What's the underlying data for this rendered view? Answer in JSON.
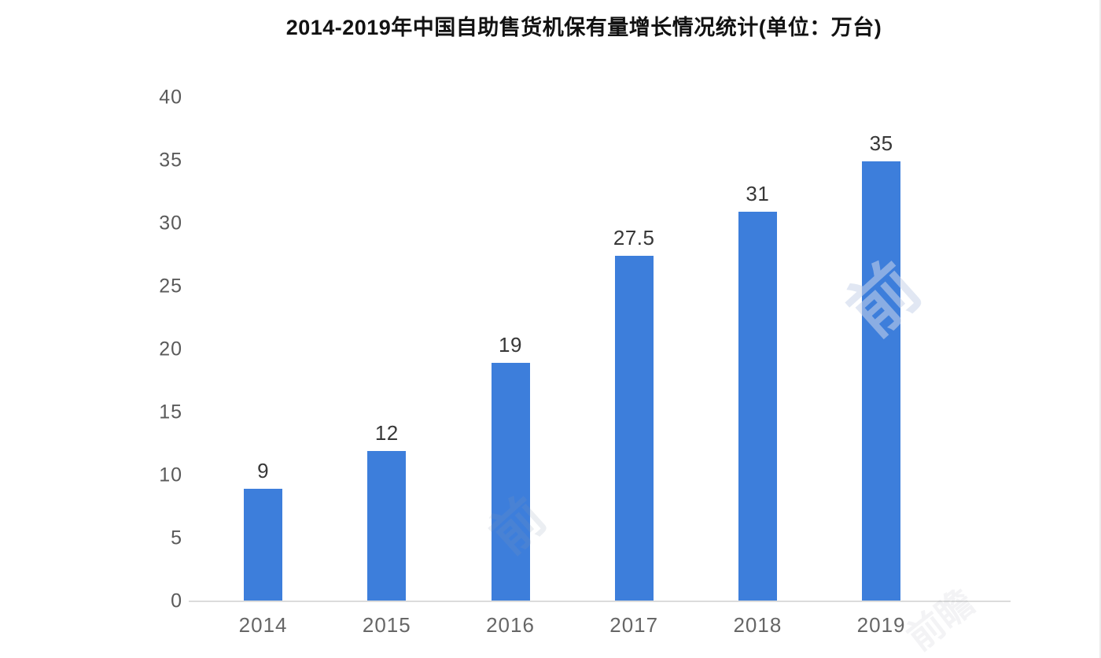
{
  "chart_data": {
    "type": "bar",
    "title": "2014-2019年中国自助售货机保有量增长情况统计(单位：万台)",
    "categories": [
      "2014",
      "2015",
      "2016",
      "2017",
      "2018",
      "2019"
    ],
    "values": [
      9,
      12,
      19,
      27.5,
      31,
      35
    ],
    "value_labels": [
      "9",
      "12",
      "19",
      "27.5",
      "31",
      "35"
    ],
    "ylim": [
      0,
      40
    ],
    "yticks": [
      0,
      5,
      10,
      15,
      20,
      25,
      30,
      35,
      40
    ],
    "grid": false,
    "legend": "none",
    "xlabel": "",
    "ylabel": "",
    "unit_label": "万台",
    "bar_color": "#3d7edb",
    "title_color": "#121212",
    "axis_tick_color": "#5a5a5a",
    "x_label_color": "#666666",
    "data_label_color": "#373737",
    "baseline_color": "#dcdcdc",
    "background_color": "#ffffff"
  },
  "watermark": {
    "glyph": "前",
    "text": "前瞻"
  }
}
